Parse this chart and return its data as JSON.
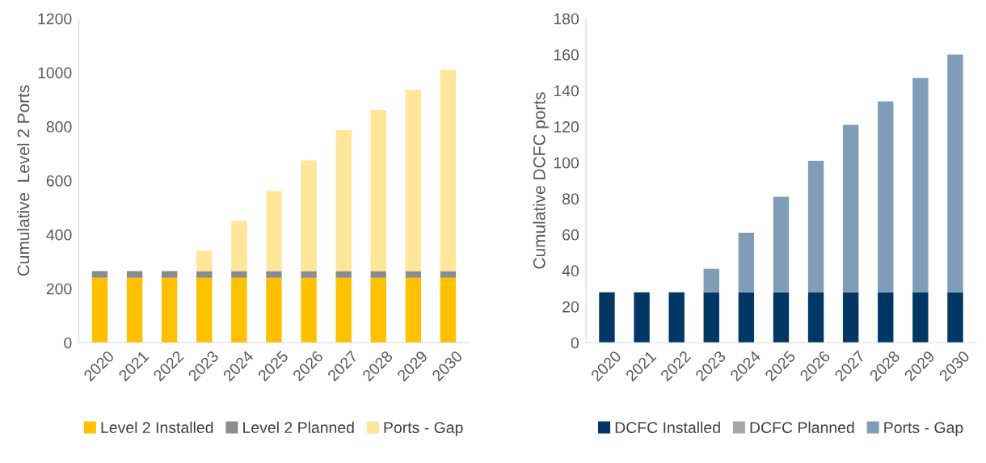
{
  "chart_data": [
    {
      "type": "bar",
      "stacked": true,
      "ylabel": "Cumulative  Level 2 Ports",
      "categories": [
        "2020",
        "2021",
        "2022",
        "2023",
        "2024",
        "2025",
        "2026",
        "2027",
        "2028",
        "2029",
        "2030"
      ],
      "ylim": [
        0,
        1200
      ],
      "yticks": [
        0,
        200,
        400,
        600,
        800,
        1000,
        1200
      ],
      "grid": false,
      "legend": "bottom",
      "series": [
        {
          "name": "Level 2 Installed",
          "color": "#ffc000",
          "values": [
            240,
            240,
            240,
            240,
            240,
            240,
            240,
            240,
            240,
            240,
            240
          ]
        },
        {
          "name": "Level 2 Planned",
          "color": "#8c8c8c",
          "values": [
            25,
            25,
            25,
            25,
            25,
            25,
            25,
            25,
            25,
            25,
            25
          ]
        },
        {
          "name": "Ports - Gap",
          "color": "#ffe699",
          "values": [
            0,
            0,
            0,
            75,
            185,
            297,
            410,
            522,
            597,
            671,
            745
          ]
        }
      ]
    },
    {
      "type": "bar",
      "stacked": true,
      "ylabel": "Cumulative DCFC ports",
      "categories": [
        "2020",
        "2021",
        "2022",
        "2023",
        "2024",
        "2025",
        "2026",
        "2027",
        "2028",
        "2029",
        "2030"
      ],
      "ylim": [
        0,
        180
      ],
      "yticks": [
        0,
        20,
        40,
        60,
        80,
        100,
        120,
        140,
        160,
        180
      ],
      "grid": false,
      "legend": "bottom",
      "series": [
        {
          "name": "DCFC Installed",
          "color": "#003764",
          "values": [
            28,
            28,
            28,
            28,
            28,
            28,
            28,
            28,
            28,
            28,
            28
          ]
        },
        {
          "name": "DCFC Planned",
          "color": "#a6a6a6",
          "values": [
            null,
            null,
            null,
            null,
            null,
            null,
            null,
            null,
            null,
            null,
            null
          ]
        },
        {
          "name": "Ports - Gap",
          "color": "#7f9db7",
          "values": [
            0,
            0,
            0,
            13,
            33,
            53,
            73,
            93,
            106,
            119,
            132
          ]
        }
      ]
    }
  ]
}
